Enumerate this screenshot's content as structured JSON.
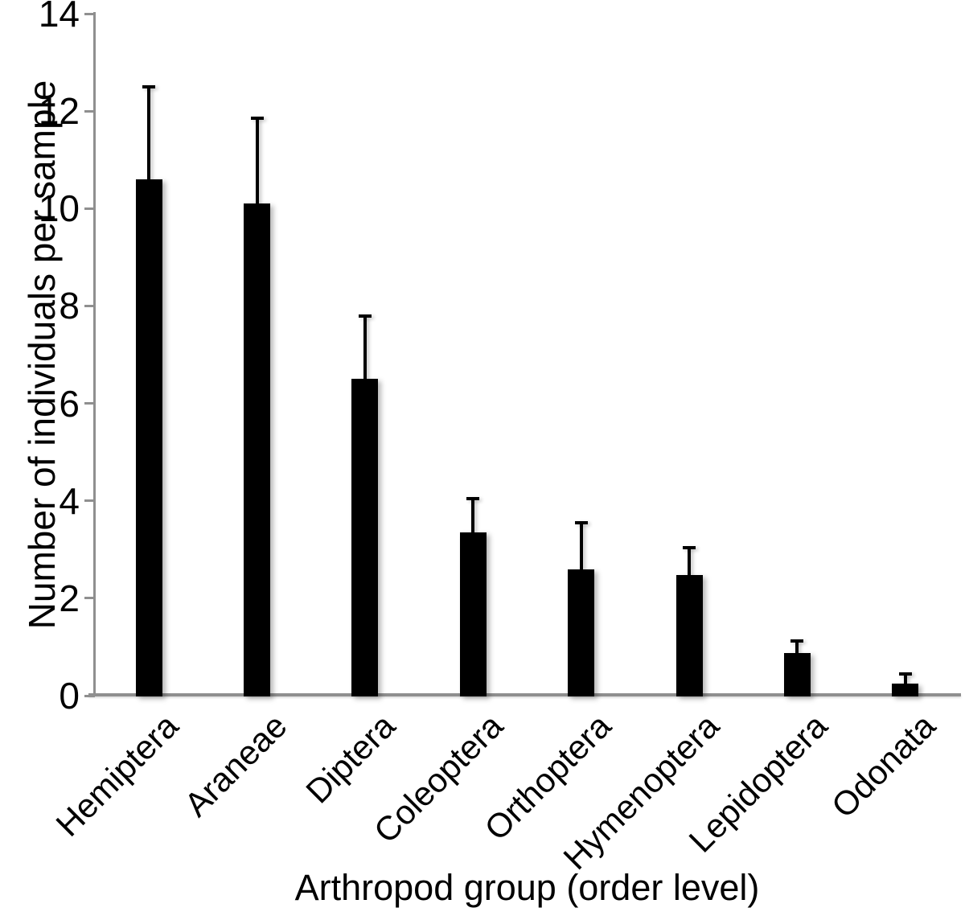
{
  "chart_data": {
    "type": "bar",
    "title": "",
    "xlabel": "Arthropod group (order level)",
    "ylabel": "Number of individuals per sample",
    "categories": [
      "Hemiptera",
      "Araneae",
      "Diptera",
      "Coleoptera",
      "Orthoptera",
      "Hymenoptera",
      "Lepidoptera",
      "Odonata"
    ],
    "series": [
      {
        "name": "Number of individuals per sample",
        "values": [
          10.6,
          10.1,
          6.5,
          3.35,
          2.6,
          2.48,
          0.88,
          0.25
        ],
        "errors_upper": [
          1.9,
          1.75,
          1.3,
          0.7,
          0.95,
          0.55,
          0.25,
          0.2
        ]
      }
    ],
    "ylim": [
      0,
      14
    ],
    "yticks": [
      0,
      2,
      4,
      6,
      8,
      10,
      12,
      14
    ],
    "grid": false,
    "legend": false,
    "bar_color": "#000000",
    "error_bar_color": "#000000",
    "axis_color": "#8f8f8f",
    "background_color": "#ffffff"
  }
}
